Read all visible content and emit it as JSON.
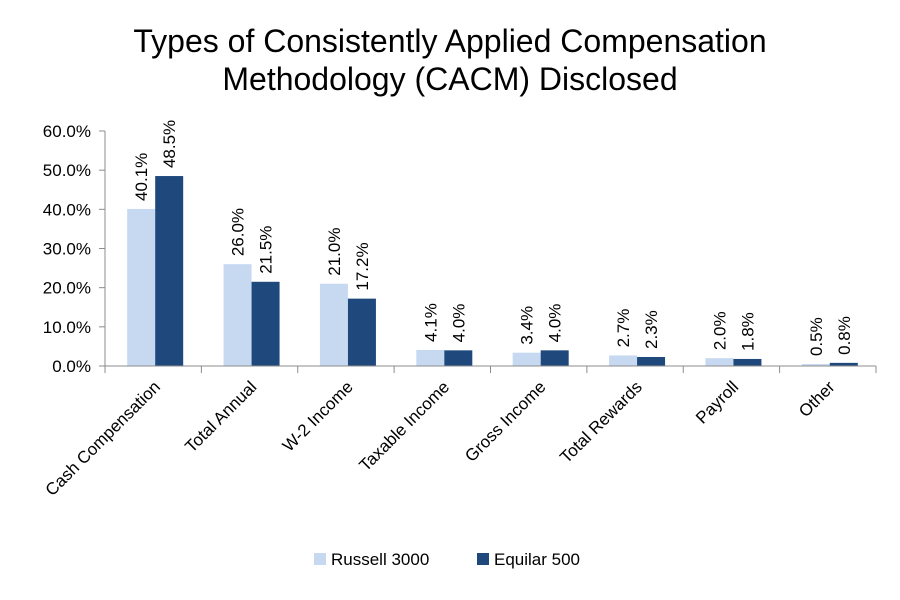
{
  "chart_data": {
    "type": "bar",
    "title_lines": [
      "Types of Consistently Applied Compensation",
      "Methodology (CACM) Disclosed"
    ],
    "xlabel": "",
    "ylabel": "",
    "categories": [
      "Cash Compensation",
      "Total Annual",
      "W-2 Income",
      "Taxable Income",
      "Gross Income",
      "Total Rewards",
      "Payroll",
      "Other"
    ],
    "series": [
      {
        "name": "Russell 3000",
        "color": "#c6d9f1",
        "values": [
          40.1,
          26.0,
          21.0,
          4.1,
          3.4,
          2.7,
          2.0,
          0.5
        ],
        "labels": [
          "40.1%",
          "26.0%",
          "21.0%",
          "4.1%",
          "3.4%",
          "2.7%",
          "2.0%",
          "0.5%"
        ]
      },
      {
        "name": "Equilar 500",
        "color": "#1f497d",
        "values": [
          48.5,
          21.5,
          17.2,
          4.0,
          4.0,
          2.3,
          1.8,
          0.8
        ],
        "labels": [
          "48.5%",
          "21.5%",
          "17.2%",
          "4.0%",
          "4.0%",
          "2.3%",
          "1.8%",
          "0.8%"
        ]
      }
    ],
    "ylim": [
      0,
      60
    ],
    "yticks": [
      0,
      10,
      20,
      30,
      40,
      50,
      60
    ],
    "ytick_labels": [
      "0.0%",
      "10.0%",
      "20.0%",
      "30.0%",
      "40.0%",
      "50.0%",
      "60.0%"
    ],
    "grid": false,
    "legend_position": "bottom"
  }
}
